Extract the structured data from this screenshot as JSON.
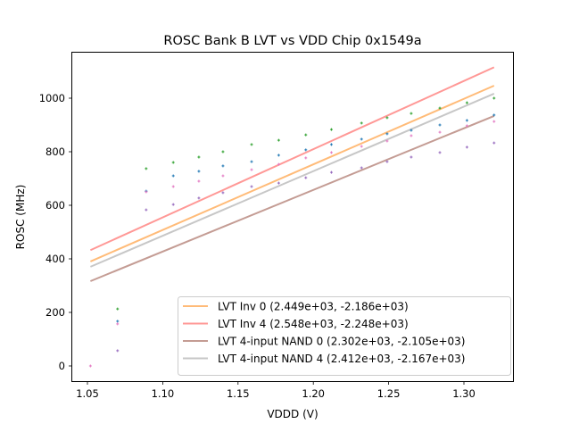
{
  "chart_data": {
    "type": "scatter",
    "title": "ROSC Bank B LVT vs VDD Chip 0x1549a",
    "xlabel": "VDDD (V)",
    "ylabel": "ROSC (MHz)",
    "xlim": [
      1.042,
      1.333
    ],
    "ylim": [
      -55,
      1160
    ],
    "xticks": [
      1.05,
      1.1,
      1.15,
      1.2,
      1.25,
      1.3
    ],
    "xtick_labels": [
      "1.05",
      "1.10",
      "1.15",
      "1.20",
      "1.25",
      "1.30"
    ],
    "yticks": [
      0,
      200,
      400,
      600,
      800,
      1000
    ],
    "ytick_labels": [
      "0",
      "200",
      "400",
      "600",
      "800",
      "1000"
    ],
    "grid": false,
    "legend_position": "lower-right",
    "x": [
      1.052,
      1.07,
      1.089,
      1.107,
      1.124,
      1.14,
      1.159,
      1.177,
      1.195,
      1.212,
      1.232,
      1.249,
      1.265,
      1.284,
      1.302,
      1.32
    ],
    "scatter_series": [
      {
        "name": "green-points",
        "color": "#2ca02c",
        "values": [
          null,
          213,
          737,
          760,
          780,
          800,
          827,
          843,
          863,
          883,
          907,
          927,
          943,
          963,
          983,
          1000
        ]
      },
      {
        "name": "blue-points",
        "color": "#1f77b4",
        "values": [
          null,
          167,
          653,
          710,
          727,
          747,
          763,
          787,
          807,
          827,
          847,
          867,
          880,
          900,
          917,
          937
        ]
      },
      {
        "name": "pink-points",
        "color": "#e377c2",
        "values": [
          0,
          157,
          650,
          670,
          690,
          710,
          733,
          753,
          777,
          797,
          820,
          840,
          860,
          873,
          897,
          913
        ]
      },
      {
        "name": "purple-points",
        "color": "#9467bd",
        "values": [
          null,
          57,
          583,
          603,
          627,
          647,
          670,
          683,
          703,
          723,
          740,
          763,
          780,
          797,
          817,
          833
        ]
      }
    ],
    "fit_lines": [
      {
        "label": "LVT Inv 0 (2.449e+03, -2.186e+03)",
        "slope": 2449,
        "intercept": -2186,
        "color": "#ffbb78"
      },
      {
        "label": "LVT Inv 4 (2.548e+03, -2.248e+03)",
        "slope": 2548,
        "intercept": -2248,
        "color": "#ff9896"
      },
      {
        "label": "LVT 4-input NAND 0 (2.302e+03, -2.105e+03)",
        "slope": 2302,
        "intercept": -2105,
        "color": "#c49c94"
      },
      {
        "label": "LVT 4-input NAND 4 (2.412e+03, -2.167e+03)",
        "slope": 2412,
        "intercept": -2167,
        "color": "#c7c7c7"
      }
    ],
    "fit_x_range": [
      1.052,
      1.32
    ]
  }
}
